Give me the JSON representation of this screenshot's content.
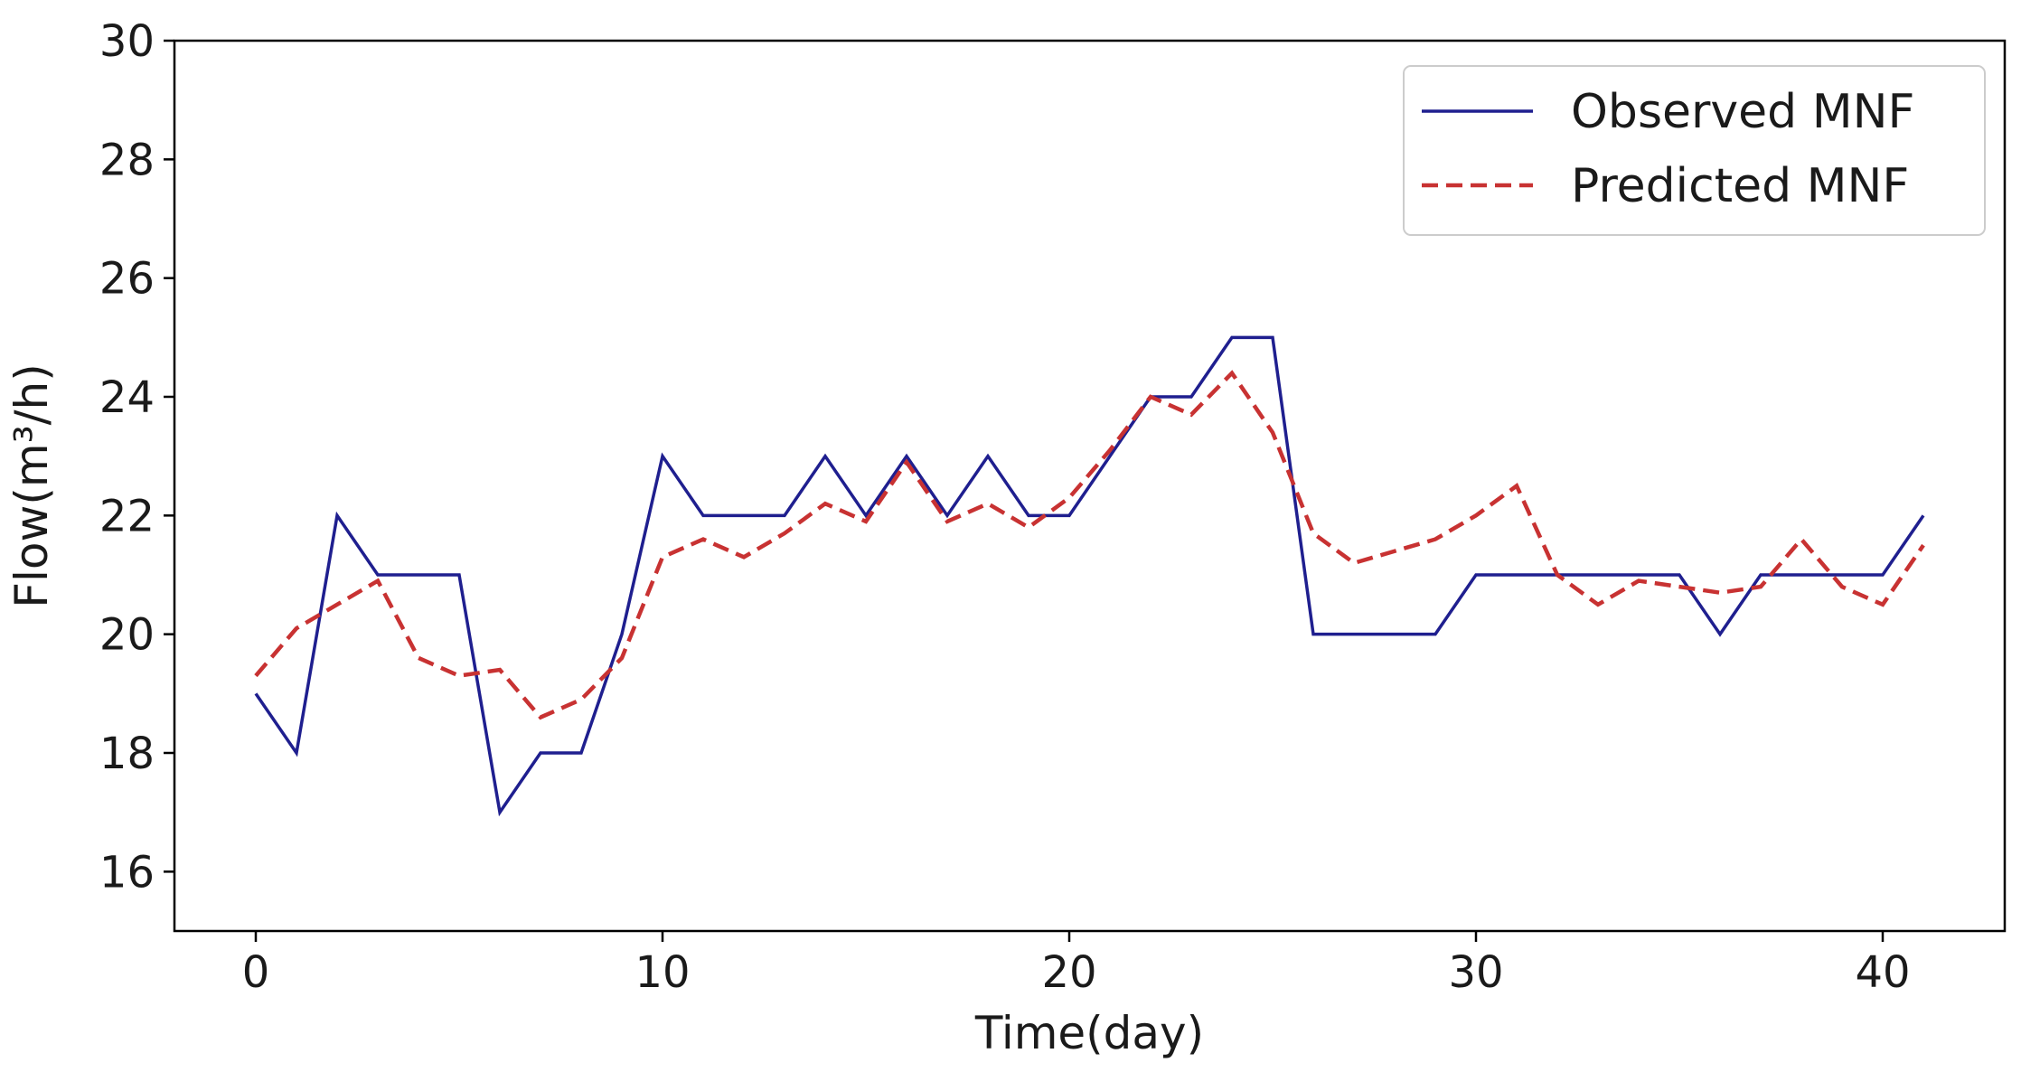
{
  "chart_data": {
    "type": "line",
    "title": "",
    "xlabel": "Time(day)",
    "ylabel": "Flow(m³/h)",
    "xlim": [
      -2,
      43
    ],
    "ylim": [
      15,
      30
    ],
    "xticks": [
      0,
      10,
      20,
      30,
      40
    ],
    "yticks": [
      16,
      18,
      20,
      22,
      24,
      26,
      28,
      30
    ],
    "grid": false,
    "legend_position": "top-right",
    "x": [
      0,
      1,
      2,
      3,
      4,
      5,
      6,
      7,
      8,
      9,
      10,
      11,
      12,
      13,
      14,
      15,
      16,
      17,
      18,
      19,
      20,
      21,
      22,
      23,
      24,
      25,
      26,
      27,
      28,
      29,
      30,
      31,
      32,
      33,
      34,
      35,
      36,
      37,
      38,
      39,
      40,
      41
    ],
    "series": [
      {
        "name": "Observed MNF",
        "color": "#1f1f8f",
        "style": "solid",
        "values": [
          19,
          18,
          22,
          21,
          21,
          21,
          17,
          18,
          18,
          20,
          23,
          22,
          22,
          22,
          23,
          22,
          23,
          22,
          23,
          22,
          22,
          23,
          24,
          24,
          25,
          25,
          20,
          20,
          20,
          20,
          21,
          21,
          21,
          21,
          21,
          21,
          20,
          21,
          21,
          21,
          21,
          22
        ]
      },
      {
        "name": "Predicted MNF",
        "color": "#c83232",
        "style": "dashed",
        "values": [
          19.3,
          20.1,
          20.5,
          20.9,
          19.6,
          19.3,
          19.4,
          18.6,
          18.9,
          19.6,
          21.3,
          21.6,
          21.3,
          21.7,
          22.2,
          21.9,
          22.9,
          21.9,
          22.2,
          21.8,
          22.3,
          23.1,
          24.0,
          23.7,
          24.4,
          23.4,
          21.7,
          21.2,
          21.4,
          21.6,
          22.0,
          22.5,
          21.0,
          20.5,
          20.9,
          20.8,
          20.7,
          20.8,
          21.6,
          20.8,
          20.5,
          21.5
        ]
      }
    ]
  }
}
